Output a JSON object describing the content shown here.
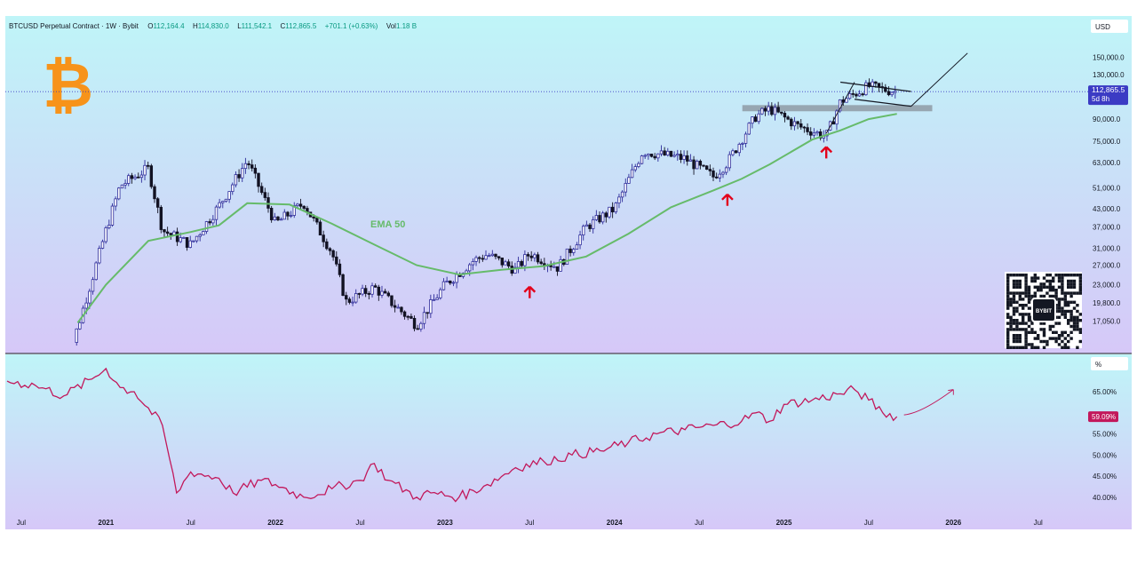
{
  "header": {
    "symbol": "BTCUSD Perpetual Contract · 1W · Bybit",
    "open_label": "O",
    "open": "112,164.4",
    "high_label": "H",
    "high": "114,830.0",
    "low_label": "L",
    "low": "111,542.1",
    "close_label": "C",
    "close": "112,865.5",
    "change": "+701.1 (+0.63%)",
    "volume_label": "Vol",
    "volume": "1.18 B"
  },
  "price_pane": {
    "currency": "USD",
    "ticks": [
      "150,000.0",
      "130,000.0",
      "90,000.0",
      "75,000.0",
      "63,000.0",
      "51,000.0",
      "43,000.0",
      "37,000.0",
      "31,000.0",
      "27,000.0",
      "23,000.0",
      "19,800.0",
      "17,050.0"
    ],
    "last_price": "112,865.5",
    "countdown": "5d 8h",
    "ema_label": "EMA 50",
    "qr_label": "BYBIT"
  },
  "indicator_pane": {
    "unit": "%",
    "ticks": [
      "65.00%",
      "55.00%",
      "50.00%",
      "45.00%",
      "40.00%"
    ],
    "last_value": "59.09%"
  },
  "x_axis": {
    "labels": [
      {
        "text": "Jul",
        "bold": false
      },
      {
        "text": "2021",
        "bold": true
      },
      {
        "text": "Jul",
        "bold": false
      },
      {
        "text": "2022",
        "bold": true
      },
      {
        "text": "Jul",
        "bold": false
      },
      {
        "text": "2023",
        "bold": true
      },
      {
        "text": "Jul",
        "bold": false
      },
      {
        "text": "2024",
        "bold": true
      },
      {
        "text": "Jul",
        "bold": false
      },
      {
        "text": "2025",
        "bold": true
      },
      {
        "text": "Jul",
        "bold": false
      },
      {
        "text": "2026",
        "bold": true
      },
      {
        "text": "Jul",
        "bold": false
      }
    ]
  },
  "colors": {
    "up": "#2e2c9a",
    "down": "#121223",
    "ema": "#66bb6a",
    "indicator": "#c2185b",
    "price_badge": "#3b3bc4",
    "logo": "#f7931a",
    "arrow": "#e3001b"
  },
  "chart_data": [
    {
      "type": "candlestick",
      "title": "BTCUSD Perpetual Contract · 1W · Bybit",
      "interval": "1W",
      "yscale": "log",
      "ylim": [
        16500,
        160000
      ],
      "x_range": [
        "2020-06",
        "2026-09"
      ],
      "last_bar": {
        "open": 112164.4,
        "high": 114830.0,
        "low": 111542.1,
        "close": 112865.5
      },
      "price_path": [
        [
          "2020-10",
          11000
        ],
        [
          "2020-12",
          24000
        ],
        [
          "2021-01",
          36000
        ],
        [
          "2021-02",
          52000
        ],
        [
          "2021-04",
          60000
        ],
        [
          "2021-05",
          36000
        ],
        [
          "2021-07",
          32000
        ],
        [
          "2021-09",
          44000
        ],
        [
          "2021-11",
          64000
        ],
        [
          "2022-01",
          38000
        ],
        [
          "2022-03",
          45000
        ],
        [
          "2022-05",
          30000
        ],
        [
          "2022-06",
          20000
        ],
        [
          "2022-08",
          22500
        ],
        [
          "2022-11",
          16500
        ],
        [
          "2023-01",
          23000
        ],
        [
          "2023-03",
          28000
        ],
        [
          "2023-04",
          29500
        ],
        [
          "2023-06",
          26000
        ],
        [
          "2023-07",
          29800
        ],
        [
          "2023-09",
          26500
        ],
        [
          "2023-11",
          37000
        ],
        [
          "2024-01",
          43000
        ],
        [
          "2024-03",
          69000
        ],
        [
          "2024-06",
          65000
        ],
        [
          "2024-08",
          56000
        ],
        [
          "2024-09",
          63000
        ],
        [
          "2024-11",
          92000
        ],
        [
          "2024-12",
          98000
        ],
        [
          "2025-02",
          85000
        ],
        [
          "2025-04",
          78000
        ],
        [
          "2025-05",
          104000
        ],
        [
          "2025-07",
          118000
        ],
        [
          "2025-08",
          115000
        ],
        [
          "2025-09",
          112865.5
        ]
      ],
      "ema50": {
        "name": "EMA 50",
        "path": [
          [
            "2020-11",
            16800
          ],
          [
            "2021-01",
            23000
          ],
          [
            "2021-04",
            33000
          ],
          [
            "2021-07",
            35500
          ],
          [
            "2021-09",
            37500
          ],
          [
            "2021-11",
            45000
          ],
          [
            "2022-02",
            44500
          ],
          [
            "2022-05",
            38000
          ],
          [
            "2022-08",
            32000
          ],
          [
            "2022-11",
            27000
          ],
          [
            "2023-02",
            25000
          ],
          [
            "2023-05",
            26000
          ],
          [
            "2023-08",
            26800
          ],
          [
            "2023-11",
            29000
          ],
          [
            "2024-02",
            35000
          ],
          [
            "2024-05",
            43500
          ],
          [
            "2024-08",
            50000
          ],
          [
            "2024-10",
            55000
          ],
          [
            "2024-12",
            62000
          ],
          [
            "2025-03",
            76000
          ],
          [
            "2025-05",
            82000
          ],
          [
            "2025-07",
            90000
          ],
          [
            "2025-09",
            94000
          ]
        ]
      },
      "support_zone": {
        "from": "2024-11",
        "to": "2025-11",
        "low": 96000,
        "high": 101000
      },
      "flag": {
        "upper": [
          [
            "2025-05",
            122000
          ],
          [
            "2025-10",
            113000
          ]
        ],
        "lower": [
          [
            "2025-06",
            106000
          ],
          [
            "2025-10",
            100000
          ]
        ],
        "projection": [
          [
            "2025-10",
            100000
          ],
          [
            "2026-02",
            155000
          ]
        ],
        "pole": [
          [
            "2025-04",
            80000
          ],
          [
            "2025-06",
            122000
          ]
        ]
      },
      "arrows": [
        [
          "2023-07",
          21500
        ],
        [
          "2024-09",
          46000
        ],
        [
          "2025-04",
          68000
        ]
      ],
      "last_value": 112865.5
    },
    {
      "type": "line",
      "yunit": "%",
      "ylim": [
        38,
        70
      ],
      "points": [
        [
          "2020-06",
          67.5
        ],
        [
          "2020-08",
          66.5
        ],
        [
          "2020-10",
          64
        ],
        [
          "2020-12",
          68
        ],
        [
          "2021-01",
          70.5
        ],
        [
          "2021-02",
          66
        ],
        [
          "2021-03",
          65
        ],
        [
          "2021-05",
          57
        ],
        [
          "2021-06",
          41
        ],
        [
          "2021-07",
          46
        ],
        [
          "2021-09",
          44.5
        ],
        [
          "2021-10",
          41
        ],
        [
          "2021-12",
          44
        ],
        [
          "2022-01",
          43
        ],
        [
          "2022-03",
          40
        ],
        [
          "2022-05",
          42
        ],
        [
          "2022-07",
          44
        ],
        [
          "2022-08",
          48
        ],
        [
          "2022-09",
          44
        ],
        [
          "2022-11",
          40
        ],
        [
          "2022-12",
          41
        ],
        [
          "2023-02",
          40
        ],
        [
          "2023-04",
          43
        ],
        [
          "2023-06",
          47
        ],
        [
          "2023-08",
          48.5
        ],
        [
          "2023-10",
          50
        ],
        [
          "2023-12",
          51
        ],
        [
          "2024-02",
          53
        ],
        [
          "2024-04",
          55
        ],
        [
          "2024-06",
          56
        ],
        [
          "2024-08",
          57
        ],
        [
          "2024-10",
          58
        ],
        [
          "2024-11",
          60
        ],
        [
          "2024-12",
          58
        ],
        [
          "2025-01",
          62
        ],
        [
          "2025-03",
          63
        ],
        [
          "2025-05",
          64.5
        ],
        [
          "2025-06",
          65.5
        ],
        [
          "2025-07",
          63
        ],
        [
          "2025-08",
          60
        ],
        [
          "2025-09",
          59.09
        ]
      ],
      "projection": [
        [
          "2025-09",
          59.5
        ],
        [
          "2026-01",
          65.5
        ]
      ],
      "last_value": 59.09
    }
  ]
}
